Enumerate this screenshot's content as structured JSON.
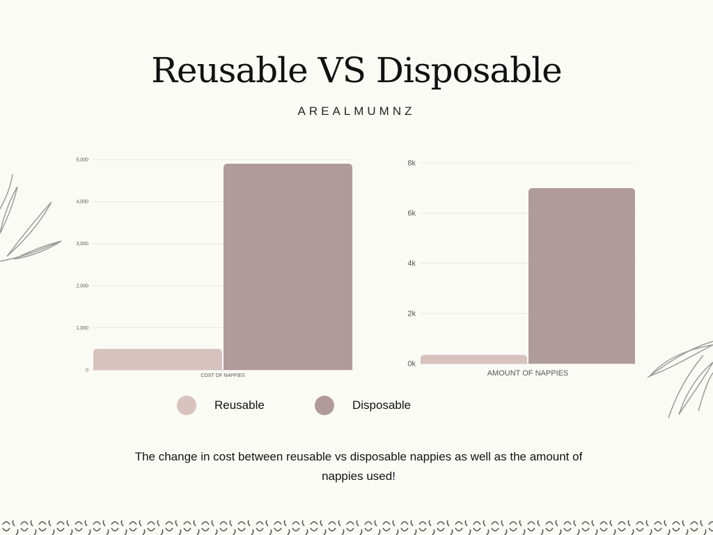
{
  "header": {
    "title": "Reusable VS Disposable",
    "subtitle": "AREALMUMNZ"
  },
  "colors": {
    "reusable": "#d8c2bd",
    "disposable": "#b09a9c",
    "grid": "#e6e6e2",
    "tick": "#555555",
    "background": "#fbfbf6"
  },
  "legend": {
    "reusable_label": "Reusable",
    "disposable_label": "Disposable"
  },
  "caption": "The change in cost between reusable vs disposable nappies as well as the amount of nappies used!",
  "chart_data": [
    {
      "type": "bar",
      "categories": [
        "COST OF NAPPIES"
      ],
      "series": [
        {
          "name": "Reusable",
          "values": [
            500
          ]
        },
        {
          "name": "Disposable",
          "values": [
            4900
          ]
        }
      ],
      "ylim": [
        0,
        5000
      ],
      "yticks": [
        0,
        1000,
        2000,
        3000,
        4000,
        5000
      ],
      "ytick_labels": [
        "0",
        "1,000",
        "2,000",
        "3,000",
        "4,000",
        "5,000"
      ],
      "grid": true
    },
    {
      "type": "bar",
      "categories": [
        "AMOUNT OF NAPPIES"
      ],
      "series": [
        {
          "name": "Reusable",
          "values": [
            350
          ]
        },
        {
          "name": "Disposable",
          "values": [
            7000
          ]
        }
      ],
      "ylim": [
        0,
        8000
      ],
      "yticks": [
        0,
        2000,
        4000,
        6000,
        8000
      ],
      "ytick_labels": [
        "0k",
        "2k",
        "4k",
        "6k",
        "8k"
      ],
      "grid": true
    }
  ]
}
